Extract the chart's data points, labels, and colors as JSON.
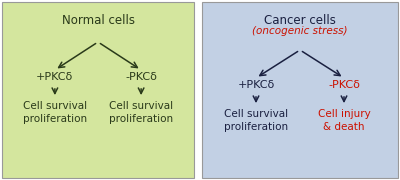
{
  "left_bg": "#d4e69e",
  "right_bg": "#c2d0e4",
  "border_color": "#999999",
  "dark_text_left": "#2a3a1a",
  "dark_text_right": "#1a2040",
  "red_text": "#cc1100",
  "left_title": "Normal cells",
  "right_title": "Cancer cells",
  "right_subtitle": "(oncogenic stress)",
  "left_plus": "+PKCδ",
  "left_minus": "-PKCδ",
  "right_plus": "+PKCδ",
  "right_minus": "-PKCδ",
  "left_plus_outcome": "Cell survival\nproliferation",
  "left_minus_outcome": "Cell survival\nproliferation",
  "right_plus_outcome": "Cell survival\nproliferation",
  "right_minus_outcome": "Cell injury\n& death",
  "font_size_title": 8.5,
  "font_size_subtitle": 7.5,
  "font_size_label": 8.0,
  "font_size_outcome": 7.5
}
